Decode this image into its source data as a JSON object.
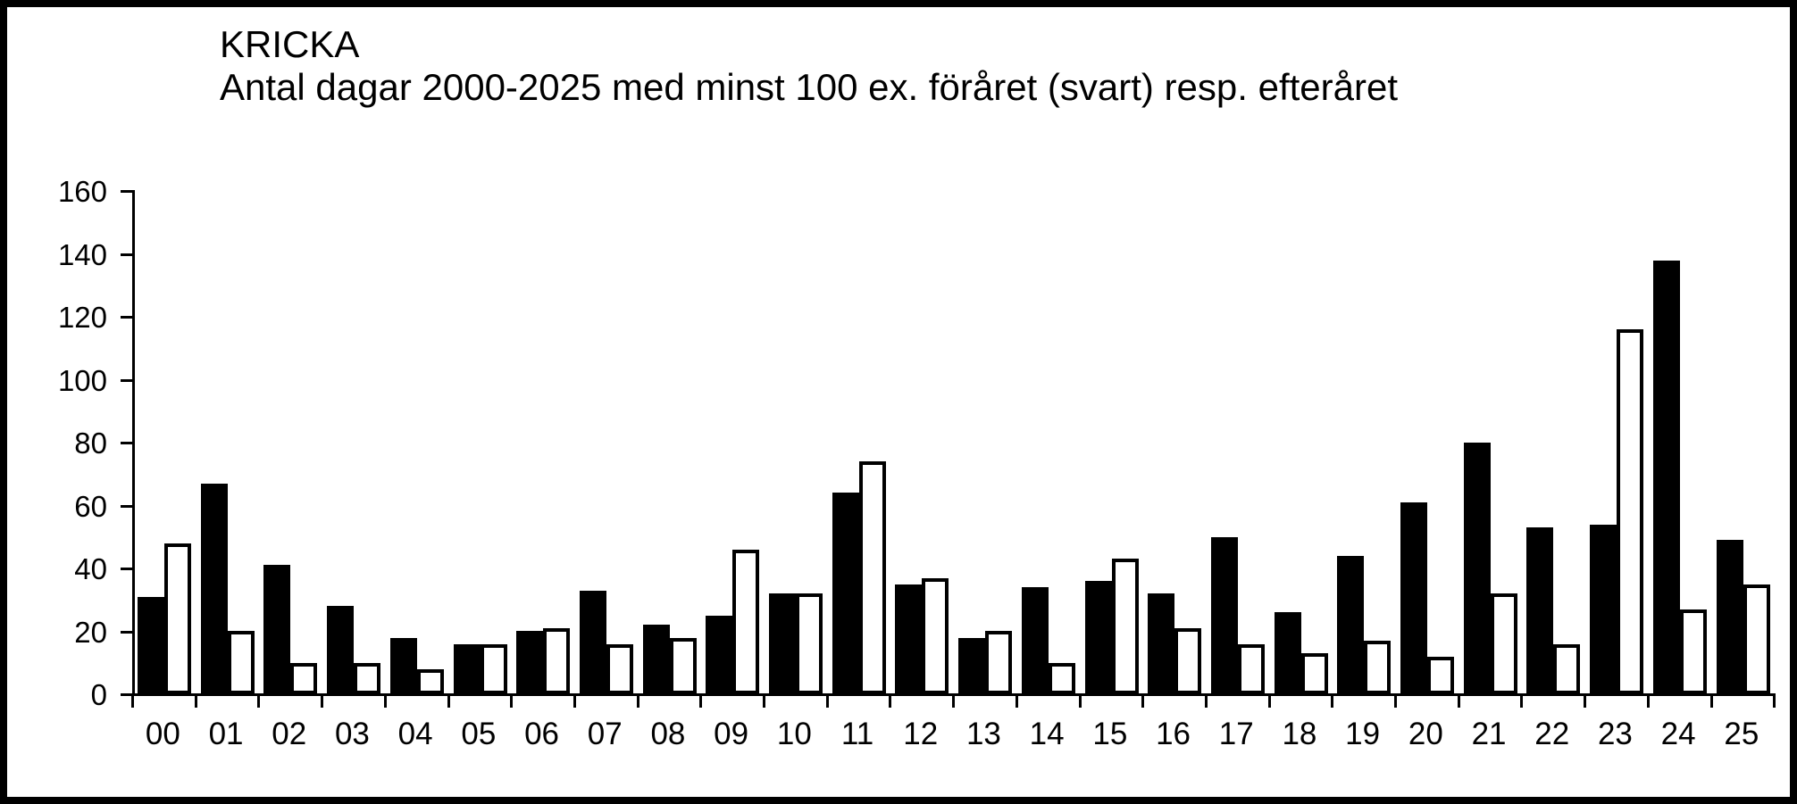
{
  "header": {
    "title": "KRICKA",
    "subtitle": "Antal dagar 2000-2025 med minst 100 ex. föråret (svart) resp. efteråret"
  },
  "colors": {
    "foreground": "#000000",
    "background": "#ffffff",
    "bar_spring": "#000000",
    "bar_autumn": "#ffffff",
    "frame_border": "#000000"
  },
  "chart_data": {
    "type": "bar",
    "title": "KRICKA",
    "subtitle": "Antal dagar 2000-2025 med minst 100 ex. föråret (svart) resp. efteråret",
    "categories": [
      "00",
      "01",
      "02",
      "03",
      "04",
      "05",
      "06",
      "07",
      "08",
      "09",
      "10",
      "11",
      "12",
      "13",
      "14",
      "15",
      "16",
      "17",
      "18",
      "19",
      "20",
      "21",
      "22",
      "23",
      "24",
      "25"
    ],
    "series": [
      {
        "name": "föråret (svart)",
        "color": "#000000",
        "values": [
          31,
          67,
          41,
          28,
          18,
          16,
          20,
          33,
          22,
          25,
          32,
          64,
          35,
          18,
          34,
          36,
          32,
          50,
          26,
          44,
          61,
          80,
          53,
          54,
          138,
          49
        ]
      },
      {
        "name": "efteråret (vit)",
        "color": "#ffffff",
        "values": [
          48,
          20,
          10,
          10,
          8,
          16,
          21,
          16,
          18,
          46,
          32,
          74,
          37,
          20,
          10,
          43,
          21,
          16,
          13,
          17,
          12,
          32,
          16,
          116,
          27,
          35
        ]
      }
    ],
    "xlabel": "",
    "ylabel": "",
    "ylim": [
      0,
      160
    ],
    "yticks": [
      0,
      20,
      40,
      60,
      80,
      100,
      120,
      140,
      160
    ],
    "grid": false,
    "legend_position": "none"
  }
}
